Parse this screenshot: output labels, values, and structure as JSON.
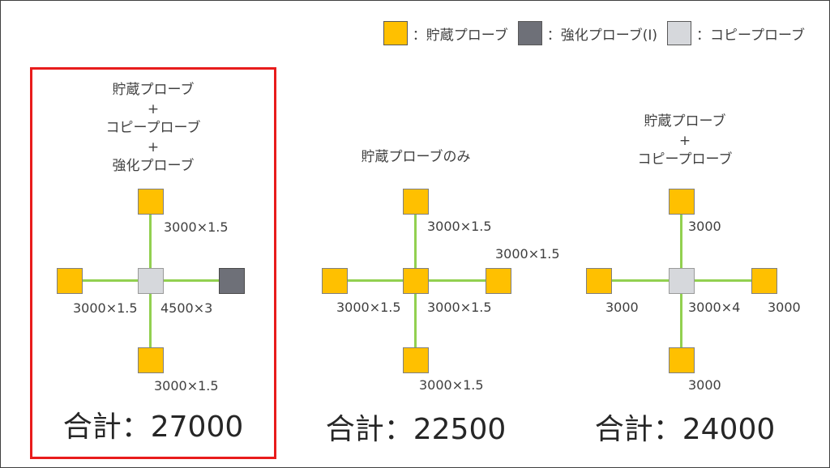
{
  "legend": {
    "items": [
      {
        "label": "：貯蔵プローブ",
        "color": "#FFC000"
      },
      {
        "label": "：強化プローブ(Ⅰ)",
        "color": "#6E7078"
      },
      {
        "label": "：コピープローブ",
        "color": "#D6D8DC"
      }
    ]
  },
  "colors": {
    "highlight_border": "#E81C1C",
    "connector": "#92D050"
  },
  "panels": [
    {
      "title_lines": [
        "貯蔵プローブ",
        "+",
        "コピープローブ",
        "+",
        "強化プローブ"
      ],
      "edge_labels": {
        "top": "3000×1.5",
        "left": "3000×1.5",
        "right": "4500×3",
        "bottom": "3000×1.5"
      },
      "total": "合計：27000",
      "highlighted": true
    },
    {
      "title_lines": [
        "貯蔵プローブのみ"
      ],
      "edge_labels": {
        "top": "3000×1.5",
        "right_top": "3000×1.5",
        "left": "3000×1.5",
        "right": "3000×1.5",
        "bottom": "3000×1.5"
      },
      "total": "合計：22500",
      "highlighted": false
    },
    {
      "title_lines": [
        "貯蔵プローブ",
        "+",
        "コピープローブ"
      ],
      "edge_labels": {
        "top": "3000",
        "left": "3000",
        "center": "3000×4",
        "right": "3000",
        "bottom": "3000"
      },
      "total": "合計：24000",
      "highlighted": false
    }
  ]
}
